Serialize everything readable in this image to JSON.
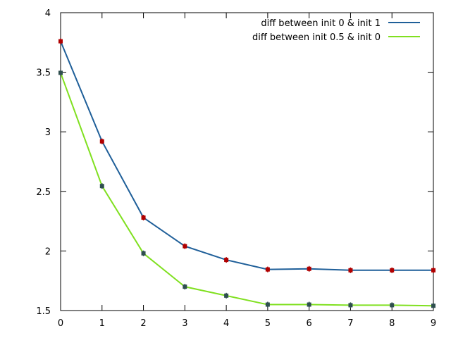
{
  "chart_data": {
    "type": "line",
    "title": "",
    "xlabel": "",
    "ylabel": "",
    "x": [
      0,
      1,
      2,
      3,
      4,
      5,
      6,
      7,
      8,
      9
    ],
    "xlim": [
      0,
      9
    ],
    "ylim": [
      1.5,
      4
    ],
    "xticks": [
      "0",
      "1",
      "2",
      "3",
      "4",
      "5",
      "6",
      "7",
      "8",
      "9"
    ],
    "yticks": [
      "1.5",
      "2",
      "2.5",
      "3",
      "3.5",
      "4"
    ],
    "grid": false,
    "legend_position": "top-right",
    "series": [
      {
        "name": "diff between init 0 & init 1",
        "color": "#1f5f99",
        "marker_color": "#b00000",
        "values": [
          3.76,
          2.92,
          2.28,
          2.04,
          1.925,
          1.845,
          1.85,
          1.838,
          1.838,
          1.838
        ]
      },
      {
        "name": "diff between init 0.5 & init 0",
        "color": "#80e020",
        "marker_color": "#2f4f4f",
        "values": [
          3.495,
          2.545,
          1.98,
          1.7,
          1.625,
          1.55,
          1.55,
          1.545,
          1.545,
          1.54
        ]
      }
    ]
  }
}
